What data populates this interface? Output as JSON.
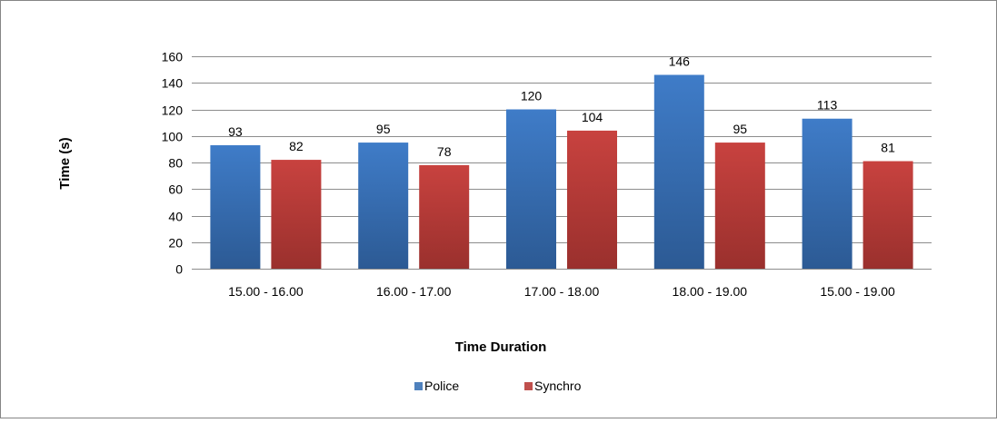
{
  "chart_data": {
    "type": "bar",
    "categories": [
      "15.00 - 16.00",
      "16.00 - 17.00",
      "17.00 - 18.00",
      "18.00 - 19.00",
      "15.00 - 19.00"
    ],
    "series": [
      {
        "name": "Police",
        "values": [
          93,
          95,
          120,
          146,
          113
        ],
        "color": "#4f81bd"
      },
      {
        "name": "Synchro",
        "values": [
          82,
          78,
          104,
          95,
          81
        ],
        "color": "#c0504d"
      }
    ],
    "title": "",
    "xlabel": "Time Duration",
    "ylabel": "Time (s)",
    "ylim": [
      0,
      160
    ],
    "yticks": [
      0,
      20,
      40,
      60,
      80,
      100,
      120,
      140,
      160
    ],
    "grid": true,
    "legend_position": "bottom",
    "data_labels": true
  }
}
